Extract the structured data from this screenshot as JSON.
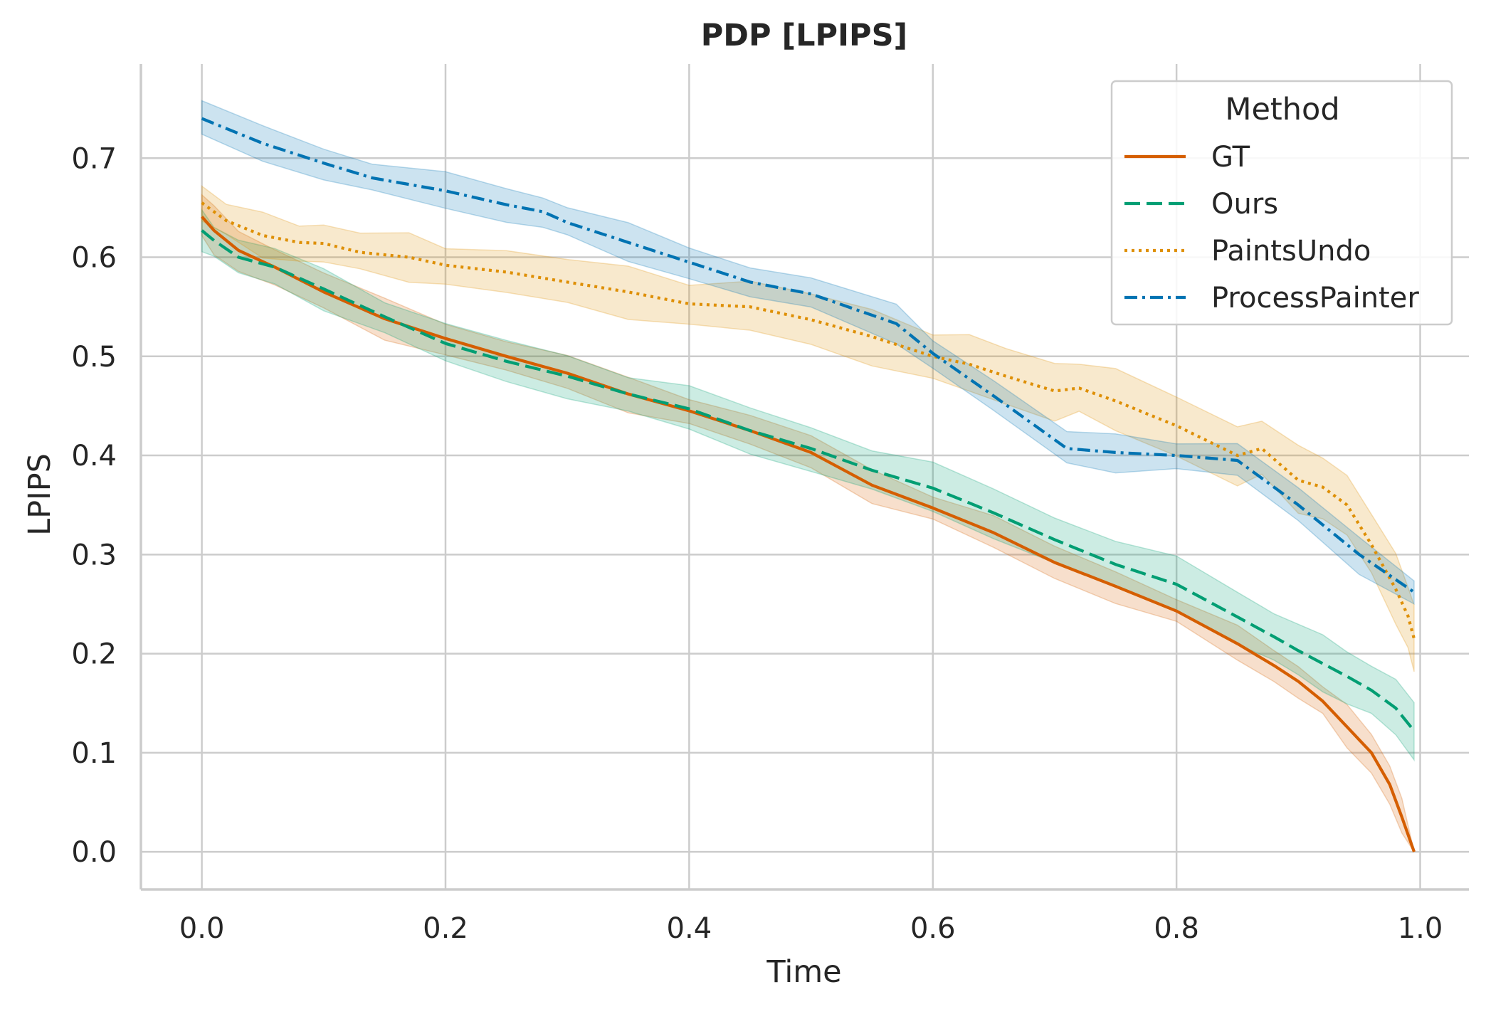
{
  "chart_data": {
    "type": "line",
    "title": "PDP [LPIPS]",
    "xlabel": "Time",
    "ylabel": "LPIPS",
    "xlim": [
      -0.05,
      1.04
    ],
    "ylim": [
      -0.038,
      0.795
    ],
    "xticks": [
      0.0,
      0.2,
      0.4,
      0.6,
      0.8,
      1.0
    ],
    "xtick_labels": [
      "0.0",
      "0.2",
      "0.4",
      "0.6",
      "0.8",
      "1.0"
    ],
    "yticks": [
      0.0,
      0.1,
      0.2,
      0.3,
      0.4,
      0.5,
      0.6,
      0.7
    ],
    "ytick_labels": [
      "0.0",
      "0.1",
      "0.2",
      "0.3",
      "0.4",
      "0.5",
      "0.6",
      "0.7"
    ],
    "grid": true,
    "legend": {
      "title": "Method",
      "position": "top-right"
    },
    "series": [
      {
        "name": "GT",
        "color": "#d55e00",
        "dash": "solid",
        "x": [
          0.0,
          0.01,
          0.03,
          0.06,
          0.1,
          0.15,
          0.2,
          0.25,
          0.3,
          0.35,
          0.4,
          0.45,
          0.5,
          0.55,
          0.6,
          0.65,
          0.7,
          0.75,
          0.8,
          0.85,
          0.88,
          0.9,
          0.92,
          0.94,
          0.96,
          0.975,
          0.985,
          0.995
        ],
        "y": [
          0.641,
          0.627,
          0.607,
          0.59,
          0.565,
          0.538,
          0.518,
          0.5,
          0.483,
          0.462,
          0.445,
          0.425,
          0.403,
          0.37,
          0.347,
          0.322,
          0.292,
          0.268,
          0.243,
          0.21,
          0.188,
          0.172,
          0.152,
          0.126,
          0.1,
          0.068,
          0.035,
          0.0
        ],
        "band": [
          0.022,
          0.022,
          0.02,
          0.02,
          0.018,
          0.018,
          0.017,
          0.016,
          0.016,
          0.015,
          0.015,
          0.015,
          0.015,
          0.015,
          0.015,
          0.015,
          0.015,
          0.015,
          0.015,
          0.015,
          0.015,
          0.016,
          0.017,
          0.018,
          0.02,
          0.02,
          0.02,
          0.0
        ]
      },
      {
        "name": "Ours",
        "color": "#029e73",
        "dash": "dashed",
        "x": [
          0.0,
          0.01,
          0.03,
          0.06,
          0.1,
          0.15,
          0.2,
          0.25,
          0.3,
          0.35,
          0.4,
          0.45,
          0.5,
          0.55,
          0.6,
          0.65,
          0.7,
          0.75,
          0.8,
          0.85,
          0.88,
          0.9,
          0.92,
          0.94,
          0.96,
          0.98,
          0.995
        ],
        "y": [
          0.627,
          0.617,
          0.6,
          0.59,
          0.568,
          0.54,
          0.513,
          0.495,
          0.48,
          0.462,
          0.447,
          0.425,
          0.407,
          0.385,
          0.367,
          0.342,
          0.315,
          0.29,
          0.27,
          0.237,
          0.217,
          0.203,
          0.19,
          0.177,
          0.163,
          0.145,
          0.122
        ]
      },
      {
        "name": "PaintsUndo",
        "color": "#de8f05",
        "dash": "dotted",
        "x": [
          0.0,
          0.02,
          0.05,
          0.08,
          0.1,
          0.13,
          0.17,
          0.2,
          0.25,
          0.3,
          0.35,
          0.4,
          0.45,
          0.5,
          0.55,
          0.6,
          0.63,
          0.66,
          0.7,
          0.72,
          0.75,
          0.8,
          0.85,
          0.87,
          0.9,
          0.92,
          0.94,
          0.96,
          0.98,
          0.99,
          0.995
        ],
        "y": [
          0.655,
          0.637,
          0.622,
          0.615,
          0.614,
          0.605,
          0.6,
          0.592,
          0.585,
          0.575,
          0.565,
          0.553,
          0.55,
          0.537,
          0.52,
          0.5,
          0.492,
          0.48,
          0.465,
          0.468,
          0.455,
          0.43,
          0.4,
          0.407,
          0.375,
          0.368,
          0.35,
          0.31,
          0.265,
          0.238,
          0.215
        ]
      },
      {
        "name": "ProcessPainter",
        "color": "#0173b2",
        "dash": "dashdot",
        "x": [
          0.0,
          0.05,
          0.1,
          0.14,
          0.2,
          0.25,
          0.28,
          0.3,
          0.35,
          0.4,
          0.45,
          0.5,
          0.57,
          0.6,
          0.65,
          0.71,
          0.75,
          0.8,
          0.85,
          0.9,
          0.95,
          0.995
        ],
        "y": [
          0.74,
          0.715,
          0.695,
          0.68,
          0.667,
          0.653,
          0.646,
          0.635,
          0.615,
          0.595,
          0.575,
          0.563,
          0.533,
          0.503,
          0.46,
          0.407,
          0.403,
          0.4,
          0.395,
          0.35,
          0.3,
          0.262
        ]
      }
    ]
  }
}
